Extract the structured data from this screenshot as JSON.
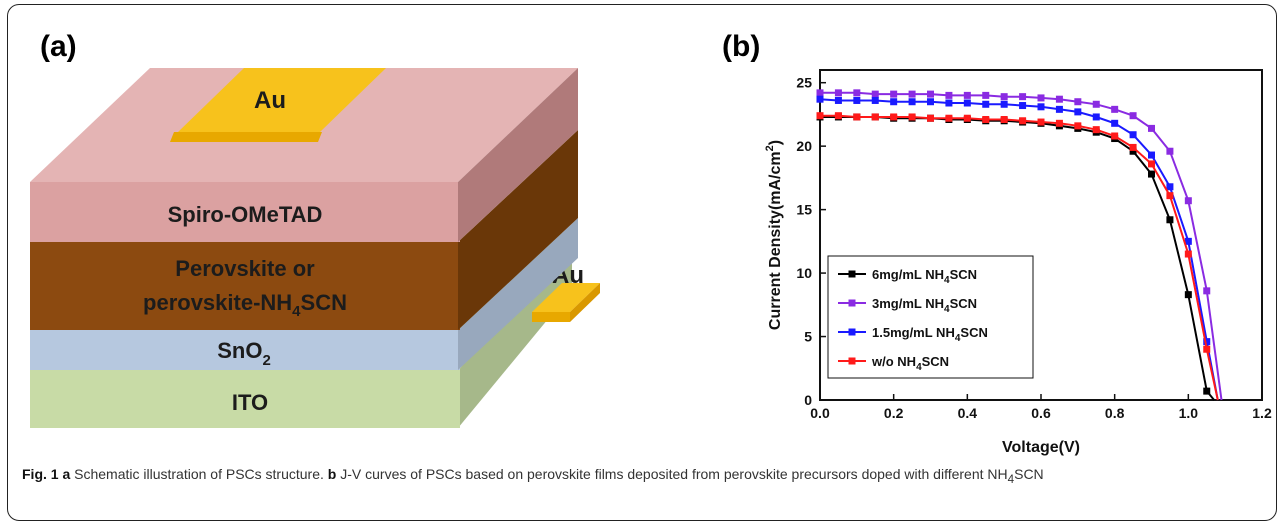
{
  "panel_a": {
    "label": "(a)",
    "layers": {
      "top_electrode": "Au",
      "side_electrode": "Au",
      "hole_transport": "Spiro-OMeTAD",
      "absorber_line1": "Perovskite or",
      "absorber_line2_prefix": "perovskite-NH",
      "absorber_line2_sub": "4",
      "absorber_line2_suffix": "SCN",
      "etl_prefix": "SnO",
      "etl_sub": "2",
      "substrate": "ITO"
    },
    "colors": {
      "spiro": "#dba1a1",
      "perovskite": "#8c4a10",
      "sno2": "#b6c8df",
      "ito": "#c8dba6",
      "au": "#f7c21c"
    }
  },
  "panel_b": {
    "label": "(b)"
  },
  "chart_data": {
    "type": "line",
    "xlabel": "Voltage(V)",
    "ylabel_prefix": "Current Density(mA/cm",
    "ylabel_sup": "2",
    "ylabel_suffix": ")",
    "xlim": [
      0.0,
      1.2
    ],
    "ylim": [
      0,
      26
    ],
    "xticks": [
      "0.0",
      "0.2",
      "0.4",
      "0.6",
      "0.8",
      "1.0",
      "1.2"
    ],
    "yticks": [
      "0",
      "5",
      "10",
      "15",
      "20",
      "25"
    ],
    "legend_position": "bottom-left",
    "series": [
      {
        "name_prefix": "6mg/mL NH",
        "name_sub": "4",
        "name_suffix": "SCN",
        "color": "#000000",
        "x": [
          0.0,
          0.05,
          0.1,
          0.15,
          0.2,
          0.25,
          0.3,
          0.35,
          0.4,
          0.45,
          0.5,
          0.55,
          0.6,
          0.65,
          0.7,
          0.75,
          0.8,
          0.85,
          0.9,
          0.95,
          1.0,
          1.05,
          1.07
        ],
        "y": [
          22.3,
          22.3,
          22.3,
          22.3,
          22.2,
          22.2,
          22.2,
          22.1,
          22.1,
          22.0,
          22.0,
          21.9,
          21.8,
          21.6,
          21.4,
          21.1,
          20.6,
          19.6,
          17.8,
          14.2,
          8.3,
          0.7,
          0
        ]
      },
      {
        "name_prefix": "3mg/mL NH",
        "name_sub": "4",
        "name_suffix": "SCN",
        "color": "#8a2be2",
        "x": [
          0.0,
          0.05,
          0.1,
          0.15,
          0.2,
          0.25,
          0.3,
          0.35,
          0.4,
          0.45,
          0.5,
          0.55,
          0.6,
          0.65,
          0.7,
          0.75,
          0.8,
          0.85,
          0.9,
          0.95,
          1.0,
          1.05,
          1.09
        ],
        "y": [
          24.2,
          24.2,
          24.2,
          24.1,
          24.1,
          24.1,
          24.1,
          24.0,
          24.0,
          24.0,
          23.9,
          23.9,
          23.8,
          23.7,
          23.5,
          23.3,
          22.9,
          22.4,
          21.4,
          19.6,
          15.7,
          8.6,
          0
        ]
      },
      {
        "name_prefix": "1.5mg/mL NH",
        "name_sub": "4",
        "name_suffix": "SCN",
        "color": "#1a1aff",
        "x": [
          0.0,
          0.05,
          0.1,
          0.15,
          0.2,
          0.25,
          0.3,
          0.35,
          0.4,
          0.45,
          0.5,
          0.55,
          0.6,
          0.65,
          0.7,
          0.75,
          0.8,
          0.85,
          0.9,
          0.95,
          1.0,
          1.05,
          1.08
        ],
        "y": [
          23.7,
          23.6,
          23.6,
          23.6,
          23.5,
          23.5,
          23.5,
          23.4,
          23.4,
          23.3,
          23.3,
          23.2,
          23.1,
          22.9,
          22.7,
          22.3,
          21.8,
          20.9,
          19.3,
          16.8,
          12.5,
          4.6,
          0
        ]
      },
      {
        "name_prefix": "w/o NH",
        "name_sub": "4",
        "name_suffix": "SCN",
        "color": "#ff1a1a",
        "x": [
          0.0,
          0.05,
          0.1,
          0.15,
          0.2,
          0.25,
          0.3,
          0.35,
          0.4,
          0.45,
          0.5,
          0.55,
          0.6,
          0.65,
          0.7,
          0.75,
          0.8,
          0.85,
          0.9,
          0.95,
          1.0,
          1.05,
          1.08
        ],
        "y": [
          22.4,
          22.4,
          22.3,
          22.3,
          22.3,
          22.3,
          22.2,
          22.2,
          22.2,
          22.1,
          22.1,
          22.0,
          21.9,
          21.8,
          21.6,
          21.3,
          20.8,
          19.9,
          18.6,
          16.1,
          11.5,
          4.0,
          0
        ]
      }
    ]
  },
  "caption": {
    "fig_label": "Fig. 1",
    "a_label": "a",
    "a_text": " Schematic illustration of PSCs structure. ",
    "b_label": "b",
    "b_text": " J-V curves of PSCs based on perovskite films deposited from perovskite precursors doped with different NH",
    "b_sub": "4",
    "b_suffix": "SCN"
  }
}
